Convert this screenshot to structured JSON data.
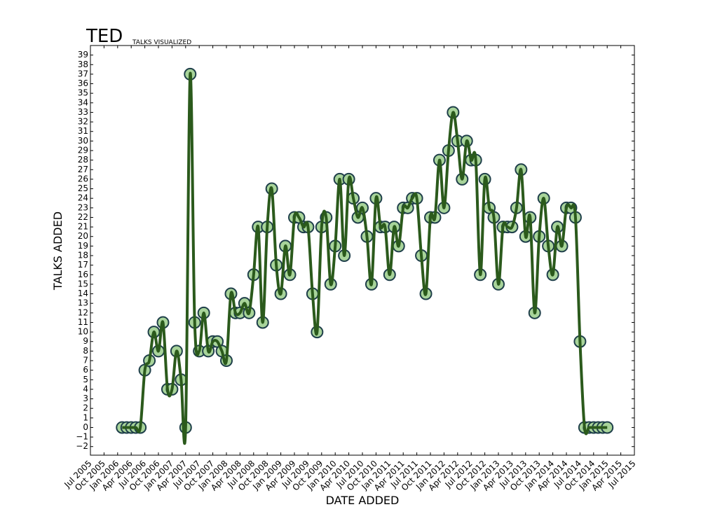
{
  "chart_data": {
    "type": "line",
    "title": "TED",
    "subtitle": "TALKS VISUALIZED",
    "x_label": "DATE ADDED",
    "y_label": "TALKS ADDED",
    "x": [
      "2006-02",
      "2006-03",
      "2006-04",
      "2006-05",
      "2006-06",
      "2006-07",
      "2006-08",
      "2006-09",
      "2006-10",
      "2006-11",
      "2006-12",
      "2007-01",
      "2007-02",
      "2007-03",
      "2007-04",
      "2007-05",
      "2007-06",
      "2007-07",
      "2007-08",
      "2007-09",
      "2007-10",
      "2007-11",
      "2007-12",
      "2008-01",
      "2008-02",
      "2008-03",
      "2008-04",
      "2008-05",
      "2008-06",
      "2008-07",
      "2008-08",
      "2008-09",
      "2008-10",
      "2008-11",
      "2008-12",
      "2009-01",
      "2009-02",
      "2009-03",
      "2009-04",
      "2009-05",
      "2009-06",
      "2009-07",
      "2009-08",
      "2009-09",
      "2009-10",
      "2009-11",
      "2009-12",
      "2010-01",
      "2010-02",
      "2010-03",
      "2010-04",
      "2010-05",
      "2010-06",
      "2010-07",
      "2010-08",
      "2010-09",
      "2010-10",
      "2010-11",
      "2010-12",
      "2011-01",
      "2011-02",
      "2011-03",
      "2011-04",
      "2011-05",
      "2011-06",
      "2011-07",
      "2011-08",
      "2011-09",
      "2011-10",
      "2011-11",
      "2011-12",
      "2012-01",
      "2012-02",
      "2012-03",
      "2012-04",
      "2012-05",
      "2012-06",
      "2012-07",
      "2012-08",
      "2012-09",
      "2012-10",
      "2012-11",
      "2012-12",
      "2013-01",
      "2013-02",
      "2013-03",
      "2013-04",
      "2013-05",
      "2013-06",
      "2013-07",
      "2013-08",
      "2013-09",
      "2013-10",
      "2013-11",
      "2013-12",
      "2014-01",
      "2014-02",
      "2014-03",
      "2014-04",
      "2014-05",
      "2014-06",
      "2014-07",
      "2014-08",
      "2014-09",
      "2014-10",
      "2014-11",
      "2014-12",
      "2015-01"
    ],
    "series": [
      {
        "color": "#2b5a1c",
        "marker_fill": "#a8d49a",
        "marker_edge": "#1f3f4a",
        "values": [
          0,
          0,
          0,
          0,
          0,
          6,
          7,
          10,
          8,
          11,
          4,
          4,
          8,
          5,
          0,
          37,
          11,
          8,
          12,
          8,
          9,
          9,
          8,
          7,
          14,
          12,
          12,
          13,
          12,
          16,
          21,
          11,
          21,
          25,
          17,
          14,
          19,
          16,
          22,
          22,
          21,
          21,
          14,
          10,
          21,
          22,
          15,
          19,
          26,
          18,
          26,
          24,
          22,
          23,
          20,
          15,
          24,
          21,
          21,
          16,
          21,
          19,
          23,
          23,
          24,
          24,
          18,
          14,
          22,
          22,
          28,
          23,
          29,
          33,
          30,
          26,
          30,
          28,
          28,
          16,
          26,
          23,
          22,
          15,
          21,
          21,
          21,
          23,
          27,
          20,
          22,
          12,
          20,
          24,
          19,
          16,
          21,
          19,
          23,
          23,
          22,
          9,
          0,
          0,
          0,
          0,
          0,
          0
        ]
      }
    ],
    "xlim": [
      "2005-07",
      "2015-07"
    ],
    "xticks": [
      {
        "value": "2005-07",
        "label": "Jul 2005"
      },
      {
        "value": "2005-10",
        "label": "Oct 2005"
      },
      {
        "value": "2006-01",
        "label": "Jan 2006"
      },
      {
        "value": "2006-04",
        "label": "Apr 2006"
      },
      {
        "value": "2006-07",
        "label": "Jul 2006"
      },
      {
        "value": "2006-10",
        "label": "Oct 2006"
      },
      {
        "value": "2007-01",
        "label": "Jan 2007"
      },
      {
        "value": "2007-04",
        "label": "Apr 2007"
      },
      {
        "value": "2007-07",
        "label": "Jul 2007"
      },
      {
        "value": "2007-10",
        "label": "Oct 2007"
      },
      {
        "value": "2008-01",
        "label": "Jan 2008"
      },
      {
        "value": "2008-04",
        "label": "Apr 2008"
      },
      {
        "value": "2008-07",
        "label": "Jul 2008"
      },
      {
        "value": "2008-10",
        "label": "Oct 2008"
      },
      {
        "value": "2009-01",
        "label": "Jan 2009"
      },
      {
        "value": "2009-04",
        "label": "Apr 2009"
      },
      {
        "value": "2009-07",
        "label": "Jul 2009"
      },
      {
        "value": "2009-10",
        "label": "Oct 2009"
      },
      {
        "value": "2010-01",
        "label": "Jan 2010"
      },
      {
        "value": "2010-04",
        "label": "Apr 2010"
      },
      {
        "value": "2010-07",
        "label": "Jul 2010"
      },
      {
        "value": "2010-10",
        "label": "Oct 2010"
      },
      {
        "value": "2011-01",
        "label": "Jan 2011"
      },
      {
        "value": "2011-04",
        "label": "Apr 2011"
      },
      {
        "value": "2011-07",
        "label": "Jul 2011"
      },
      {
        "value": "2011-10",
        "label": "Oct 2011"
      },
      {
        "value": "2012-01",
        "label": "Jan 2012"
      },
      {
        "value": "2012-04",
        "label": "Apr 2012"
      },
      {
        "value": "2012-07",
        "label": "Jul 2012"
      },
      {
        "value": "2012-10",
        "label": "Oct 2012"
      },
      {
        "value": "2013-01",
        "label": "Jan 2013"
      },
      {
        "value": "2013-04",
        "label": "Apr 2013"
      },
      {
        "value": "2013-07",
        "label": "Jul 2013"
      },
      {
        "value": "2013-10",
        "label": "Oct 2013"
      },
      {
        "value": "2014-01",
        "label": "Jan 2014"
      },
      {
        "value": "2014-04",
        "label": "Apr 2014"
      },
      {
        "value": "2014-07",
        "label": "Jul 2014"
      },
      {
        "value": "2014-10",
        "label": "Oct 2014"
      },
      {
        "value": "2015-01",
        "label": "Jan 2015"
      },
      {
        "value": "2015-04",
        "label": "Apr 2015"
      },
      {
        "value": "2015-07",
        "label": "Jul 2015"
      }
    ],
    "ylim": [
      -2.9,
      40
    ],
    "yticks": [
      {
        "value": -2,
        "label": "−2"
      },
      {
        "value": -1,
        "label": "−1"
      },
      0,
      1,
      2,
      3,
      4,
      5,
      6,
      7,
      8,
      9,
      10,
      11,
      12,
      13,
      14,
      15,
      16,
      17,
      18,
      19,
      20,
      21,
      22,
      23,
      24,
      25,
      26,
      27,
      28,
      29,
      30,
      31,
      32,
      33,
      34,
      35,
      36,
      37,
      38,
      39
    ],
    "grid": false
  }
}
